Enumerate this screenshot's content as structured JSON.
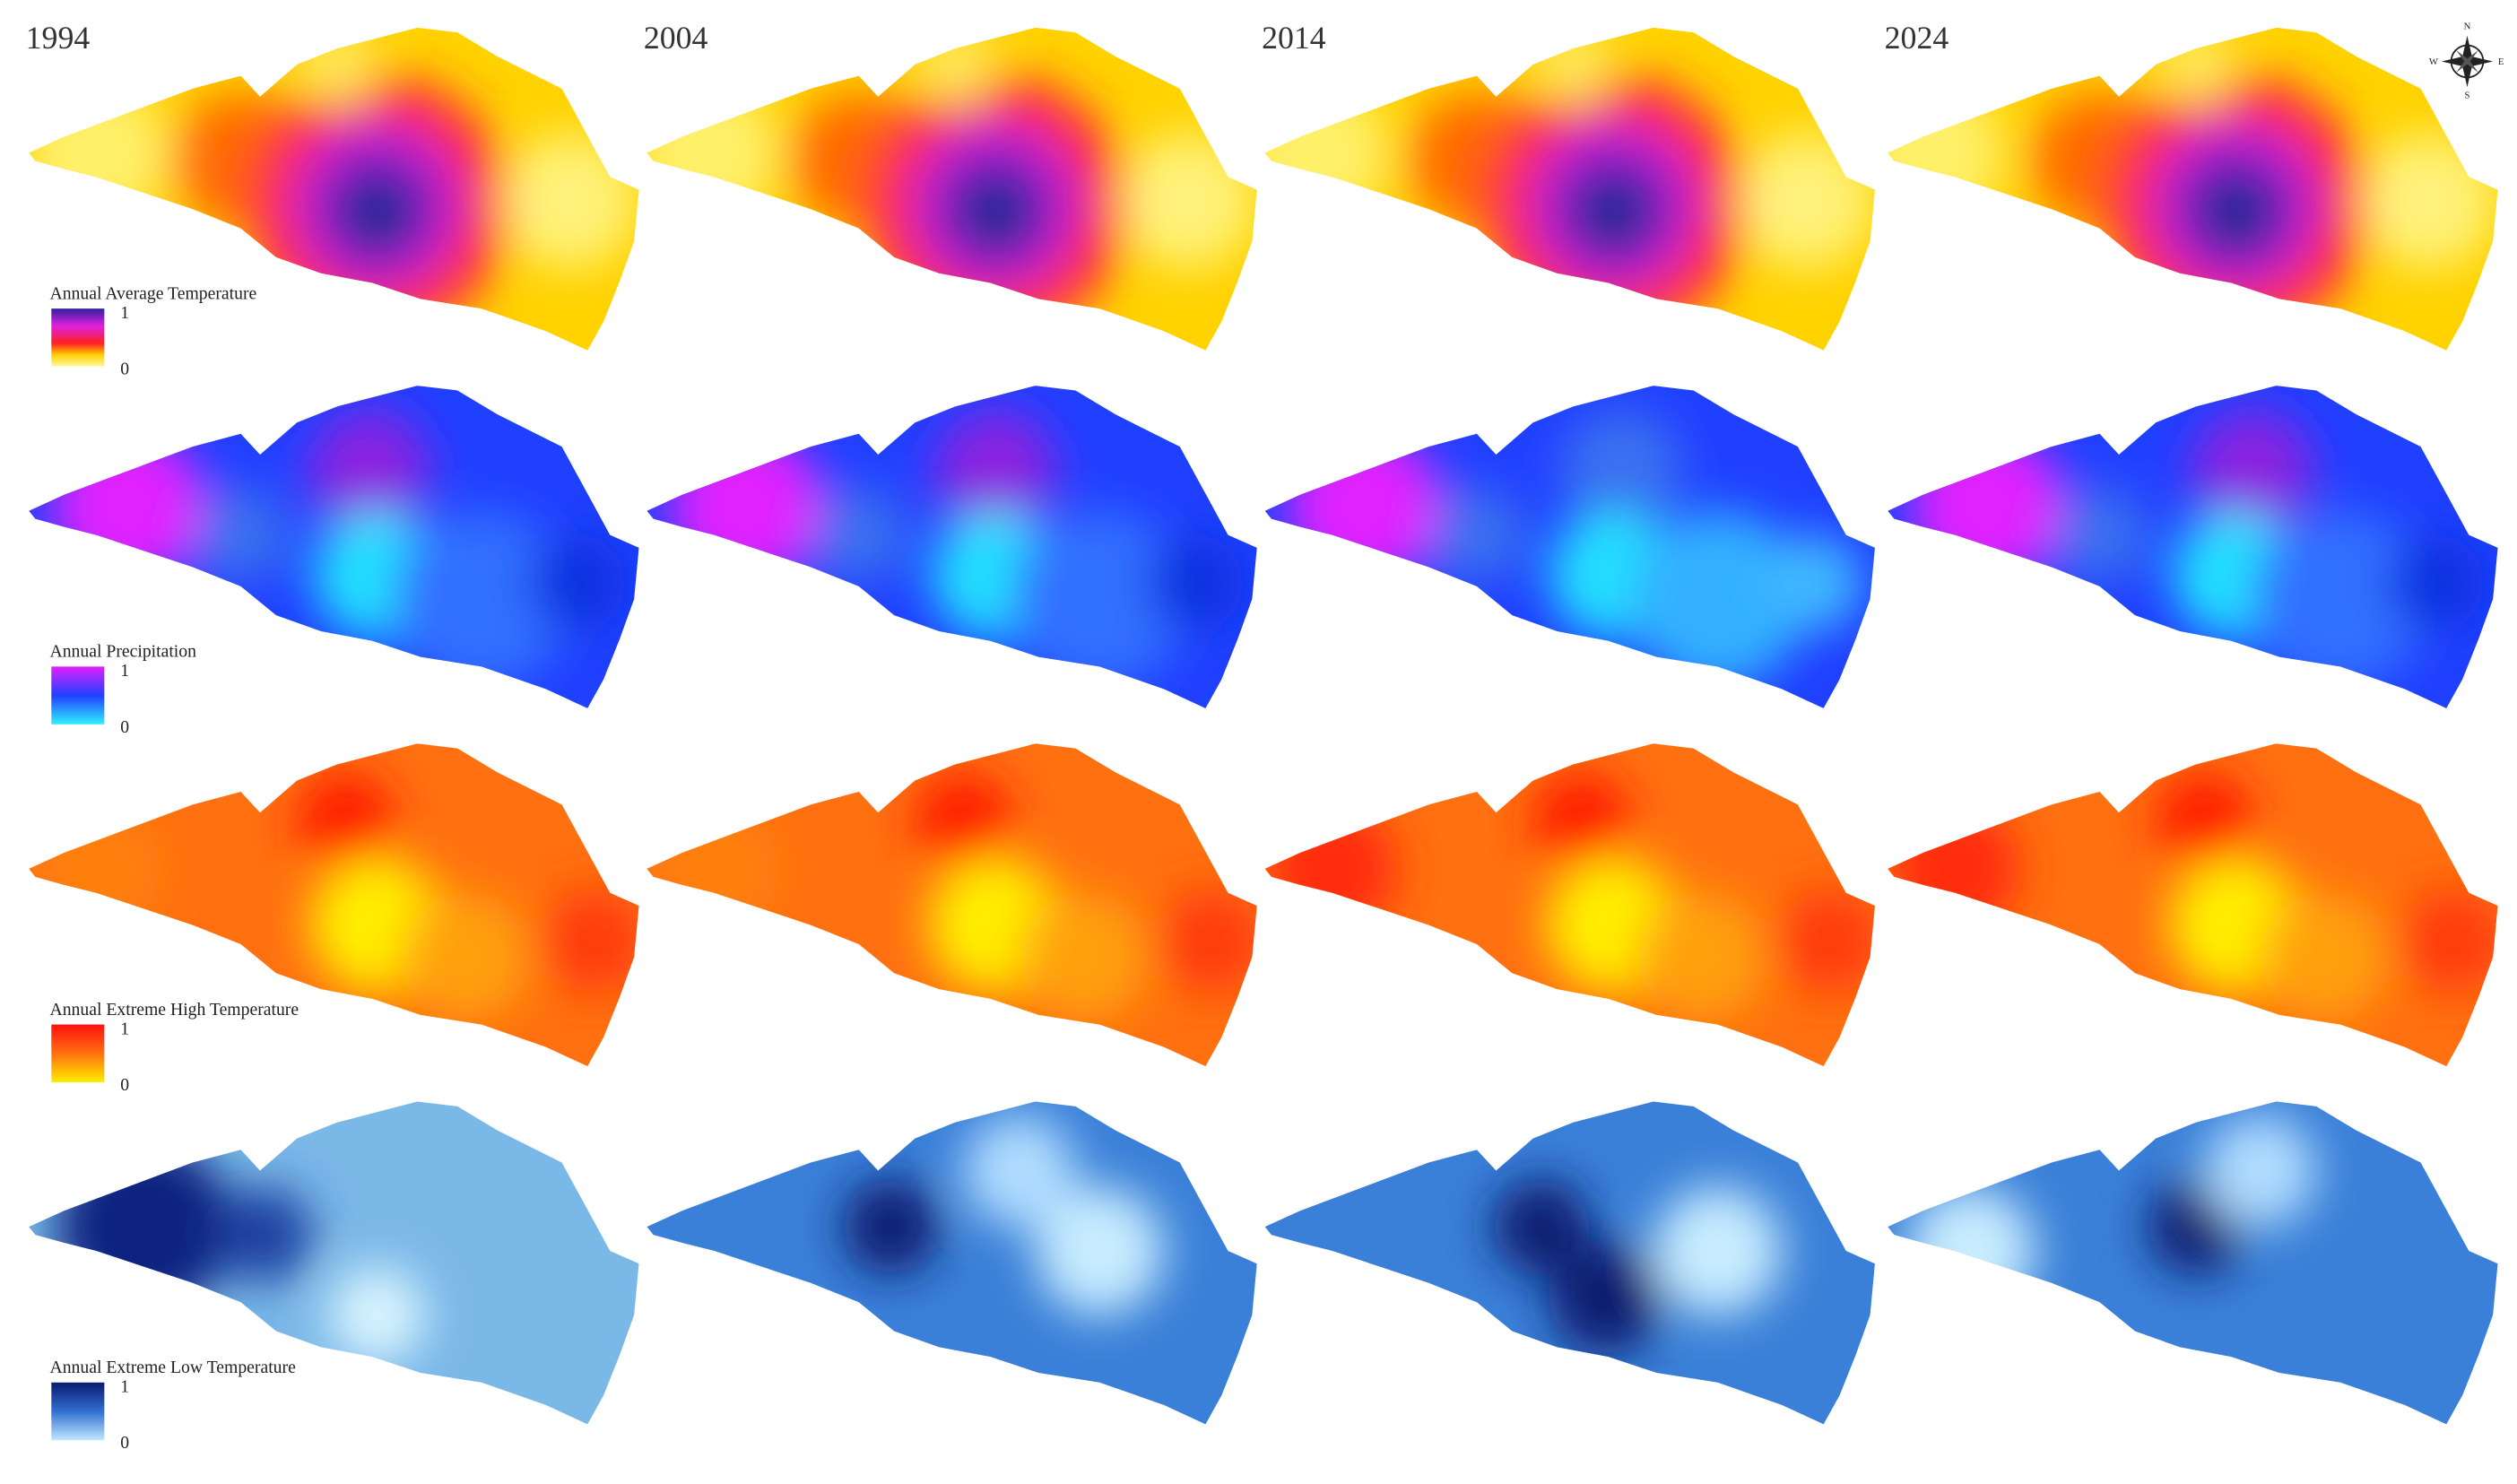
{
  "columns": [
    "1994",
    "2004",
    "2014",
    "2024"
  ],
  "rows": [
    {
      "legend_title": "Annual Average Temperature",
      "max_label": "1",
      "min_label": "0"
    },
    {
      "legend_title": "Annual Precipitation",
      "max_label": "1",
      "min_label": "0"
    },
    {
      "legend_title": "Annual Extreme High Temperature",
      "max_label": "1",
      "min_label": "0"
    },
    {
      "legend_title": "Annual Extreme Low Temperature",
      "max_label": "1",
      "min_label": "0"
    }
  ],
  "compass": {
    "north": "N",
    "south": "S",
    "east": "E",
    "west": "W"
  }
}
